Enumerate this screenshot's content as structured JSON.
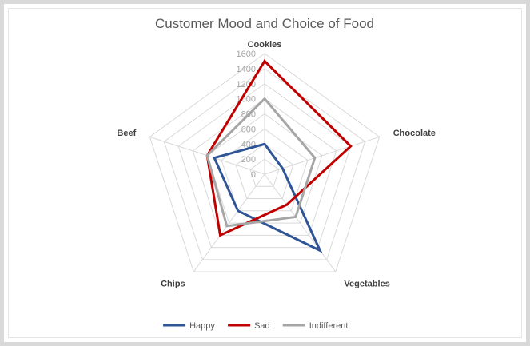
{
  "chart_data": {
    "type": "radar",
    "title": "Customer Mood and Choice of Food",
    "categories": [
      "Cookies",
      "Chocolate",
      "Vegetables",
      "Chips",
      "Beef"
    ],
    "r_ticks": [
      "0",
      "200",
      "400",
      "600",
      "800",
      "1000",
      "1200",
      "1400",
      "1600"
    ],
    "r_range": [
      0,
      1600
    ],
    "grid": true,
    "legend_position": "bottom",
    "series": [
      {
        "name": "Happy",
        "color": "#2f5597",
        "values": [
          400,
          250,
          1250,
          600,
          700
        ]
      },
      {
        "name": "Sad",
        "color": "#c00000",
        "values": [
          1500,
          1200,
          500,
          1000,
          800
        ]
      },
      {
        "name": "Indifferent",
        "color": "#a6a6a6",
        "values": [
          1000,
          700,
          700,
          850,
          800
        ]
      }
    ]
  }
}
